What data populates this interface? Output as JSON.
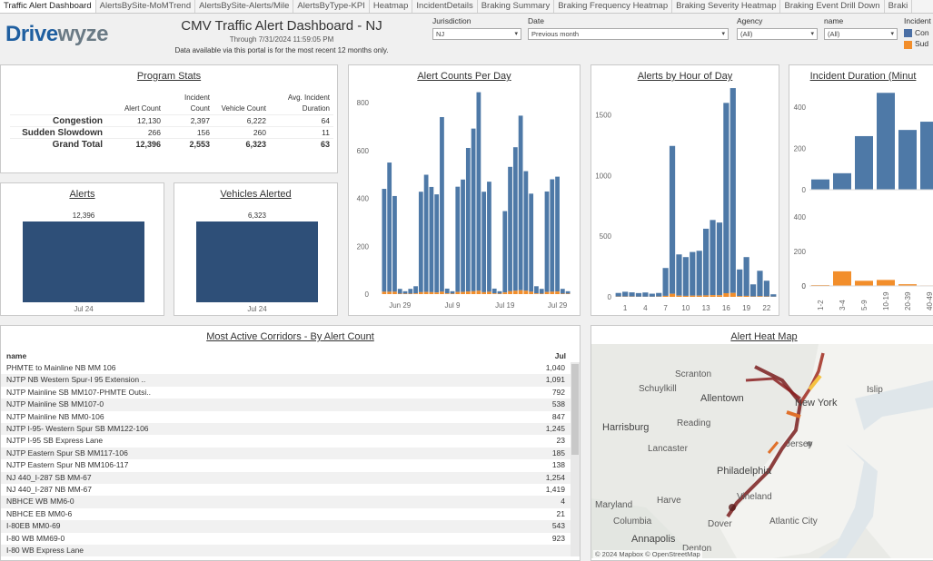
{
  "tabs": [
    "Traffic Alert Dashboard",
    "AlertsBySite-MoMTrend",
    "AlertsBySite-Alerts/Mile",
    "AlertsByType-KPI",
    "Heatmap",
    "IncidentDetails",
    "Braking Summary",
    "Braking Frequency Heatmap",
    "Braking Severity Heatmap",
    "Braking Event Drill Down",
    "Braki"
  ],
  "header": {
    "logo_a": "Drive",
    "logo_b": "wyze",
    "title": "CMV Traffic Alert Dashboard - NJ",
    "subtitle": "Through 7/31/2024 11:59:05 PM",
    "note": "Data available via this portal is for the most recent 12 months only."
  },
  "filters": {
    "jurisdiction": {
      "label": "Jurisdiction",
      "value": "NJ"
    },
    "date": {
      "label": "Date",
      "value": "Previous month"
    },
    "agency": {
      "label": "Agency",
      "value": "(All)"
    },
    "name": {
      "label": "name",
      "value": "(All)"
    }
  },
  "legend": {
    "label": "Incident",
    "items": [
      {
        "name": "Con",
        "color": "#4a6fa5"
      },
      {
        "name": "Sud",
        "color": "#f28e2b"
      }
    ]
  },
  "colors": {
    "congestion": "#4e79a7",
    "slowdown": "#f28e2b",
    "kpi": "#2e4f78"
  },
  "program_stats": {
    "title": "Program Stats",
    "columns": [
      "Alert Count",
      "Incident Count",
      "Vehicle Count",
      "Avg. Incident Duration"
    ],
    "col_lines": [
      [
        "",
        "Alert Count"
      ],
      [
        "Incident",
        "Count"
      ],
      [
        "",
        "Vehicle Count"
      ],
      [
        "Avg. Incident",
        "Duration"
      ]
    ],
    "rows": [
      {
        "label": "Congestion",
        "values": [
          "12,130",
          "2,397",
          "6,222",
          "64"
        ]
      },
      {
        "label": "Sudden Slowdown",
        "values": [
          "266",
          "156",
          "260",
          "11"
        ]
      },
      {
        "label": "Grand Total",
        "values": [
          "12,396",
          "2,553",
          "6,323",
          "63"
        ]
      }
    ]
  },
  "alerts_kpi": {
    "title": "Alerts",
    "value": "12,396",
    "xlabel": "Jul 24"
  },
  "vehicles_kpi": {
    "title": "Vehicles Alerted",
    "value": "6,323",
    "xlabel": "Jul 24"
  },
  "corridors": {
    "title": "Most Active Corridors - By Alert Count",
    "col_name": "name",
    "col_value": "Jul",
    "rows": [
      {
        "name": "PHMTE to Mainline NB MM 106",
        "value": "1,040"
      },
      {
        "name": "NJTP NB Western Spur-I 95 Extension ..",
        "value": "1,091"
      },
      {
        "name": "NJTP Mainline SB MM107-PHMTE Outsi..",
        "value": "792"
      },
      {
        "name": "NJTP Mainline SB MM107-0",
        "value": "538"
      },
      {
        "name": "NJTP Mainline NB MM0-106",
        "value": "847"
      },
      {
        "name": "NJTP I-95- Western Spur SB MM122-106",
        "value": "1,245"
      },
      {
        "name": "NJTP I-95 SB Express Lane",
        "value": "23"
      },
      {
        "name": "NJTP Eastern Spur SB MM117-106",
        "value": "185"
      },
      {
        "name": "NJTP Eastern Spur NB MM106-117",
        "value": "138"
      },
      {
        "name": "NJ 440_I-287 SB MM-67",
        "value": "1,254"
      },
      {
        "name": "NJ 440_I-287 NB MM-67",
        "value": "1,419"
      },
      {
        "name": "NBHCE WB MM6-0",
        "value": "4"
      },
      {
        "name": "NBHCE EB MM0-6",
        "value": "21"
      },
      {
        "name": "I-80EB MM0-69",
        "value": "543"
      },
      {
        "name": "I-80 WB MM69-0",
        "value": "923"
      },
      {
        "name": "I-80 WB Express Lane",
        "value": ""
      }
    ]
  },
  "heatmap": {
    "title": "Alert Heat Map",
    "credit": "© 2024 Mapbox  © OpenStreetMap",
    "labels": [
      "Allentown",
      "Harrisburg",
      "Reading",
      "Lancaster",
      "Philadelphia",
      "Vineland",
      "Dover",
      "Atlantic City",
      "Annapolis",
      "Maryland",
      "Columbia",
      "New York",
      "Scranton",
      "Schuylkill",
      "Jersey",
      "Denton",
      "Harve",
      "Islip"
    ]
  },
  "chart_data": [
    {
      "type": "bar",
      "title": "Alert Counts Per Day",
      "x_tick_labels": [
        "Jun 29",
        "Jul 9",
        "Jul 19",
        "Jul 29"
      ],
      "x": [
        "Jun 26",
        "Jun 27",
        "Jun 28",
        "Jun 29",
        "Jun 30",
        "Jul 1",
        "Jul 2",
        "Jul 3",
        "Jul 4",
        "Jul 5",
        "Jul 6",
        "Jul 7",
        "Jul 8",
        "Jul 9",
        "Jul 10",
        "Jul 11",
        "Jul 12",
        "Jul 13",
        "Jul 14",
        "Jul 15",
        "Jul 16",
        "Jul 17",
        "Jul 18",
        "Jul 19",
        "Jul 20",
        "Jul 21",
        "Jul 22",
        "Jul 23",
        "Jul 24",
        "Jul 25",
        "Jul 26",
        "Jul 27",
        "Jul 28",
        "Jul 29",
        "Jul 30",
        "Jul 31"
      ],
      "stacked": true,
      "ylim": [
        0,
        850
      ],
      "yticks": [
        0,
        200,
        400,
        600,
        800
      ],
      "series": [
        {
          "name": "Congestion",
          "values": [
            430,
            540,
            400,
            20,
            10,
            20,
            30,
            420,
            490,
            440,
            410,
            730,
            20,
            10,
            440,
            470,
            600,
            680,
            830,
            420,
            460,
            20,
            10,
            340,
            520,
            600,
            730,
            500,
            410,
            30,
            20,
            420,
            470,
            480,
            20,
            10
          ]
        },
        {
          "name": "Sudden Slowdown",
          "values": [
            10,
            10,
            10,
            2,
            2,
            2,
            3,
            8,
            9,
            8,
            7,
            10,
            3,
            2,
            9,
            9,
            11,
            12,
            14,
            8,
            10,
            3,
            2,
            7,
            12,
            14,
            16,
            14,
            10,
            3,
            2,
            9,
            10,
            11,
            2,
            2
          ]
        }
      ]
    },
    {
      "type": "bar",
      "title": "Alerts by Hour of Day",
      "x": [
        0,
        1,
        2,
        3,
        4,
        5,
        6,
        7,
        8,
        9,
        10,
        11,
        12,
        13,
        14,
        15,
        16,
        17,
        18,
        19,
        20,
        21,
        22,
        23
      ],
      "x_tick_labels": [
        "1",
        "4",
        "7",
        "10",
        "13",
        "16",
        "19",
        "22"
      ],
      "stacked": true,
      "ylim": [
        0,
        1700
      ],
      "yticks": [
        0,
        500,
        1000,
        1500
      ],
      "series": [
        {
          "name": "Congestion",
          "values": [
            30,
            40,
            35,
            30,
            35,
            25,
            30,
            230,
            1220,
            340,
            320,
            360,
            370,
            550,
            620,
            600,
            1570,
            1690,
            220,
            320,
            100,
            210,
            130,
            20
          ]
        },
        {
          "name": "Sudden Slowdown",
          "values": [
            2,
            2,
            2,
            1,
            1,
            1,
            2,
            8,
            25,
            10,
            8,
            10,
            10,
            12,
            14,
            13,
            30,
            32,
            6,
            8,
            3,
            5,
            3,
            1
          ]
        }
      ]
    },
    {
      "type": "bar",
      "title": "Incident Duration (Minut",
      "categories": [
        "1-2",
        "3-4",
        "5-9",
        "10-19",
        "20-39",
        "40-49"
      ],
      "panels": [
        {
          "series": "Congestion",
          "values": [
            50,
            80,
            260,
            470,
            290,
            330
          ],
          "ylim": [
            0,
            480
          ],
          "yticks": [
            0,
            200,
            400
          ]
        },
        {
          "series": "Sudden Slowdown",
          "values": [
            5,
            85,
            30,
            35,
            10,
            3
          ],
          "ylim": [
            0,
            480
          ],
          "yticks": [
            0,
            200,
            400
          ]
        }
      ]
    }
  ]
}
